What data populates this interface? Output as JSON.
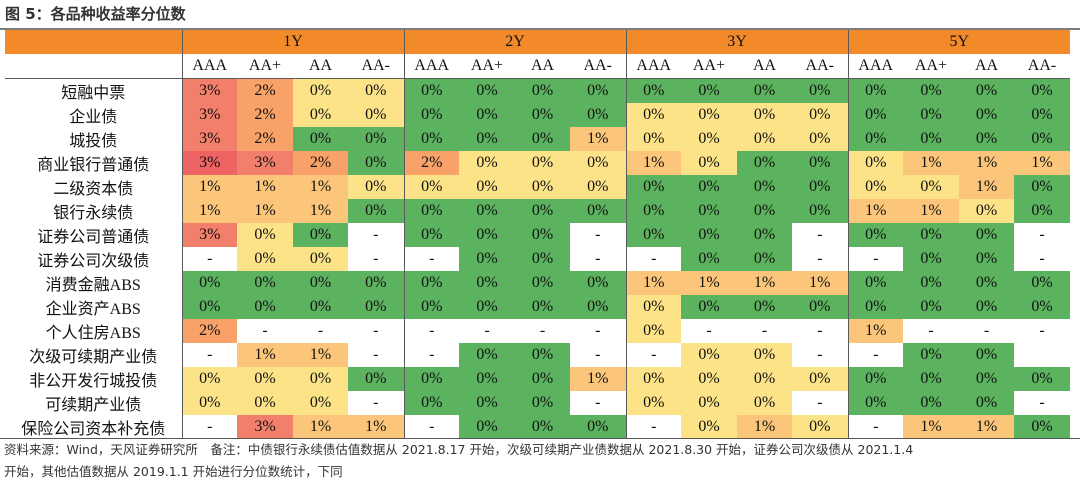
{
  "title": "图 5：各品种收益率分位数",
  "tenors": [
    "1Y",
    "2Y",
    "3Y",
    "5Y"
  ],
  "ratings": [
    "AAA",
    "AA+",
    "AA",
    "AA-"
  ],
  "colors": {
    "header_orange": "#f38a2a",
    "green": "#5cb35f",
    "pale_yellow": "#fde388",
    "light_orange": "#fbc67a",
    "orange": "#f8a26a",
    "red_orange": "#f27f6b",
    "red": "#ee6363",
    "blank": "#ffffff"
  },
  "rows": [
    {
      "label": "短融中票",
      "cells": [
        [
          "3%",
          "red_orange"
        ],
        [
          "2%",
          "orange"
        ],
        [
          "0%",
          "pale_yellow"
        ],
        [
          "0%",
          "pale_yellow"
        ],
        [
          "0%",
          "green"
        ],
        [
          "0%",
          "green"
        ],
        [
          "0%",
          "green"
        ],
        [
          "0%",
          "green"
        ],
        [
          "0%",
          "green"
        ],
        [
          "0%",
          "green"
        ],
        [
          "0%",
          "green"
        ],
        [
          "0%",
          "green"
        ],
        [
          "0%",
          "green"
        ],
        [
          "0%",
          "green"
        ],
        [
          "0%",
          "green"
        ],
        [
          "0%",
          "green"
        ]
      ]
    },
    {
      "label": "企业债",
      "cells": [
        [
          "3%",
          "red_orange"
        ],
        [
          "2%",
          "orange"
        ],
        [
          "0%",
          "pale_yellow"
        ],
        [
          "0%",
          "pale_yellow"
        ],
        [
          "0%",
          "green"
        ],
        [
          "0%",
          "green"
        ],
        [
          "0%",
          "green"
        ],
        [
          "0%",
          "green"
        ],
        [
          "0%",
          "pale_yellow"
        ],
        [
          "0%",
          "pale_yellow"
        ],
        [
          "0%",
          "pale_yellow"
        ],
        [
          "0%",
          "pale_yellow"
        ],
        [
          "0%",
          "green"
        ],
        [
          "0%",
          "green"
        ],
        [
          "0%",
          "green"
        ],
        [
          "0%",
          "green"
        ]
      ]
    },
    {
      "label": "城投债",
      "cells": [
        [
          "3%",
          "red_orange"
        ],
        [
          "2%",
          "orange"
        ],
        [
          "0%",
          "green"
        ],
        [
          "0%",
          "green"
        ],
        [
          "0%",
          "green"
        ],
        [
          "0%",
          "green"
        ],
        [
          "0%",
          "green"
        ],
        [
          "1%",
          "light_orange"
        ],
        [
          "0%",
          "pale_yellow"
        ],
        [
          "0%",
          "pale_yellow"
        ],
        [
          "0%",
          "pale_yellow"
        ],
        [
          "0%",
          "pale_yellow"
        ],
        [
          "0%",
          "green"
        ],
        [
          "0%",
          "green"
        ],
        [
          "0%",
          "green"
        ],
        [
          "0%",
          "green"
        ]
      ]
    },
    {
      "label": "商业银行普通债",
      "cells": [
        [
          "3%",
          "red"
        ],
        [
          "3%",
          "red_orange"
        ],
        [
          "2%",
          "orange"
        ],
        [
          "0%",
          "green"
        ],
        [
          "2%",
          "orange"
        ],
        [
          "0%",
          "pale_yellow"
        ],
        [
          "0%",
          "pale_yellow"
        ],
        [
          "0%",
          "pale_yellow"
        ],
        [
          "1%",
          "light_orange"
        ],
        [
          "0%",
          "pale_yellow"
        ],
        [
          "0%",
          "green"
        ],
        [
          "0%",
          "green"
        ],
        [
          "0%",
          "pale_yellow"
        ],
        [
          "1%",
          "light_orange"
        ],
        [
          "1%",
          "light_orange"
        ],
        [
          "1%",
          "light_orange"
        ]
      ]
    },
    {
      "label": "二级资本债",
      "cells": [
        [
          "1%",
          "light_orange"
        ],
        [
          "1%",
          "light_orange"
        ],
        [
          "1%",
          "light_orange"
        ],
        [
          "0%",
          "pale_yellow"
        ],
        [
          "0%",
          "pale_yellow"
        ],
        [
          "0%",
          "pale_yellow"
        ],
        [
          "0%",
          "pale_yellow"
        ],
        [
          "0%",
          "pale_yellow"
        ],
        [
          "0%",
          "green"
        ],
        [
          "0%",
          "green"
        ],
        [
          "0%",
          "green"
        ],
        [
          "0%",
          "green"
        ],
        [
          "0%",
          "pale_yellow"
        ],
        [
          "0%",
          "pale_yellow"
        ],
        [
          "1%",
          "light_orange"
        ],
        [
          "0%",
          "green"
        ]
      ]
    },
    {
      "label": "银行永续债",
      "cells": [
        [
          "1%",
          "light_orange"
        ],
        [
          "1%",
          "light_orange"
        ],
        [
          "1%",
          "light_orange"
        ],
        [
          "0%",
          "green"
        ],
        [
          "0%",
          "green"
        ],
        [
          "0%",
          "green"
        ],
        [
          "0%",
          "green"
        ],
        [
          "0%",
          "green"
        ],
        [
          "0%",
          "green"
        ],
        [
          "0%",
          "green"
        ],
        [
          "0%",
          "green"
        ],
        [
          "0%",
          "green"
        ],
        [
          "1%",
          "light_orange"
        ],
        [
          "1%",
          "light_orange"
        ],
        [
          "0%",
          "pale_yellow"
        ],
        [
          "0%",
          "green"
        ]
      ]
    },
    {
      "label": "证券公司普通债",
      "cells": [
        [
          "3%",
          "red_orange"
        ],
        [
          "0%",
          "pale_yellow"
        ],
        [
          "0%",
          "green"
        ],
        [
          "-",
          "blank"
        ],
        [
          "0%",
          "green"
        ],
        [
          "0%",
          "green"
        ],
        [
          "0%",
          "green"
        ],
        [
          "-",
          "blank"
        ],
        [
          "0%",
          "green"
        ],
        [
          "0%",
          "green"
        ],
        [
          "0%",
          "green"
        ],
        [
          "-",
          "blank"
        ],
        [
          "0%",
          "green"
        ],
        [
          "0%",
          "green"
        ],
        [
          "0%",
          "green"
        ],
        [
          "-",
          "blank"
        ]
      ]
    },
    {
      "label": "证券公司次级债",
      "cells": [
        [
          "-",
          "blank"
        ],
        [
          "0%",
          "pale_yellow"
        ],
        [
          "0%",
          "pale_yellow"
        ],
        [
          "-",
          "blank"
        ],
        [
          "-",
          "blank"
        ],
        [
          "0%",
          "green"
        ],
        [
          "0%",
          "green"
        ],
        [
          "-",
          "blank"
        ],
        [
          "-",
          "blank"
        ],
        [
          "0%",
          "green"
        ],
        [
          "0%",
          "green"
        ],
        [
          "-",
          "blank"
        ],
        [
          "-",
          "blank"
        ],
        [
          "0%",
          "green"
        ],
        [
          "0%",
          "green"
        ],
        [
          "-",
          "blank"
        ]
      ]
    },
    {
      "label": "消费金融ABS",
      "cells": [
        [
          "0%",
          "green"
        ],
        [
          "0%",
          "green"
        ],
        [
          "0%",
          "green"
        ],
        [
          "0%",
          "green"
        ],
        [
          "0%",
          "green"
        ],
        [
          "0%",
          "green"
        ],
        [
          "0%",
          "green"
        ],
        [
          "0%",
          "green"
        ],
        [
          "1%",
          "light_orange"
        ],
        [
          "1%",
          "light_orange"
        ],
        [
          "1%",
          "light_orange"
        ],
        [
          "1%",
          "light_orange"
        ],
        [
          "0%",
          "green"
        ],
        [
          "0%",
          "green"
        ],
        [
          "0%",
          "green"
        ],
        [
          "0%",
          "green"
        ]
      ]
    },
    {
      "label": "企业资产ABS",
      "cells": [
        [
          "0%",
          "green"
        ],
        [
          "0%",
          "green"
        ],
        [
          "0%",
          "green"
        ],
        [
          "0%",
          "green"
        ],
        [
          "0%",
          "green"
        ],
        [
          "0%",
          "green"
        ],
        [
          "0%",
          "green"
        ],
        [
          "0%",
          "green"
        ],
        [
          "0%",
          "pale_yellow"
        ],
        [
          "0%",
          "green"
        ],
        [
          "0%",
          "green"
        ],
        [
          "0%",
          "green"
        ],
        [
          "0%",
          "green"
        ],
        [
          "0%",
          "green"
        ],
        [
          "0%",
          "green"
        ],
        [
          "0%",
          "green"
        ]
      ]
    },
    {
      "label": "个人住房ABS",
      "cells": [
        [
          "2%",
          "orange"
        ],
        [
          "-",
          "blank"
        ],
        [
          "-",
          "blank"
        ],
        [
          "-",
          "blank"
        ],
        [
          "-",
          "blank"
        ],
        [
          "-",
          "blank"
        ],
        [
          "-",
          "blank"
        ],
        [
          "-",
          "blank"
        ],
        [
          "0%",
          "pale_yellow"
        ],
        [
          "-",
          "blank"
        ],
        [
          "-",
          "blank"
        ],
        [
          "-",
          "blank"
        ],
        [
          "1%",
          "light_orange"
        ],
        [
          "-",
          "blank"
        ],
        [
          "-",
          "blank"
        ],
        [
          "-",
          "blank"
        ]
      ]
    },
    {
      "label": "次级可续期产业债",
      "cells": [
        [
          "-",
          "blank"
        ],
        [
          "1%",
          "light_orange"
        ],
        [
          "1%",
          "light_orange"
        ],
        [
          "-",
          "blank"
        ],
        [
          "-",
          "blank"
        ],
        [
          "0%",
          "green"
        ],
        [
          "0%",
          "green"
        ],
        [
          "-",
          "blank"
        ],
        [
          "-",
          "blank"
        ],
        [
          "0%",
          "pale_yellow"
        ],
        [
          "0%",
          "pale_yellow"
        ],
        [
          "-",
          "blank"
        ],
        [
          "-",
          "blank"
        ],
        [
          "0%",
          "green"
        ],
        [
          "0%",
          "green"
        ],
        [
          "",
          "blank"
        ]
      ]
    },
    {
      "label": "非公开发行城投债",
      "cells": [
        [
          "0%",
          "pale_yellow"
        ],
        [
          "0%",
          "pale_yellow"
        ],
        [
          "0%",
          "pale_yellow"
        ],
        [
          "0%",
          "green"
        ],
        [
          "0%",
          "green"
        ],
        [
          "0%",
          "green"
        ],
        [
          "0%",
          "green"
        ],
        [
          "1%",
          "light_orange"
        ],
        [
          "0%",
          "pale_yellow"
        ],
        [
          "0%",
          "pale_yellow"
        ],
        [
          "0%",
          "pale_yellow"
        ],
        [
          "0%",
          "pale_yellow"
        ],
        [
          "0%",
          "green"
        ],
        [
          "0%",
          "green"
        ],
        [
          "0%",
          "green"
        ],
        [
          "0%",
          "green"
        ]
      ]
    },
    {
      "label": "可续期产业债",
      "cells": [
        [
          "0%",
          "pale_yellow"
        ],
        [
          "0%",
          "pale_yellow"
        ],
        [
          "0%",
          "pale_yellow"
        ],
        [
          "-",
          "blank"
        ],
        [
          "0%",
          "green"
        ],
        [
          "0%",
          "green"
        ],
        [
          "0%",
          "green"
        ],
        [
          "-",
          "blank"
        ],
        [
          "0%",
          "pale_yellow"
        ],
        [
          "0%",
          "pale_yellow"
        ],
        [
          "0%",
          "pale_yellow"
        ],
        [
          "-",
          "blank"
        ],
        [
          "0%",
          "green"
        ],
        [
          "0%",
          "green"
        ],
        [
          "0%",
          "green"
        ],
        [
          "-",
          "blank"
        ]
      ]
    },
    {
      "label": "保险公司资本补充债",
      "cells": [
        [
          "-",
          "blank"
        ],
        [
          "3%",
          "red_orange"
        ],
        [
          "1%",
          "light_orange"
        ],
        [
          "1%",
          "light_orange"
        ],
        [
          "-",
          "blank"
        ],
        [
          "0%",
          "green"
        ],
        [
          "0%",
          "green"
        ],
        [
          "0%",
          "green"
        ],
        [
          "-",
          "blank"
        ],
        [
          "0%",
          "pale_yellow"
        ],
        [
          "1%",
          "light_orange"
        ],
        [
          "0%",
          "pale_yellow"
        ],
        [
          "-",
          "blank"
        ],
        [
          "1%",
          "light_orange"
        ],
        [
          "1%",
          "light_orange"
        ],
        [
          "0%",
          "green"
        ]
      ]
    }
  ],
  "footnote": {
    "line1": "资料来源：Wind，天风证券研究所　备注：中债银行永续债估值数据从 2021.8.17 开始，次级可续期产业债数据从 2021.8.30 开始，证券公司次级债从 2021.1.4",
    "line2": "开始，其他估值数据从 2019.1.1 开始进行分位数统计，下同"
  }
}
